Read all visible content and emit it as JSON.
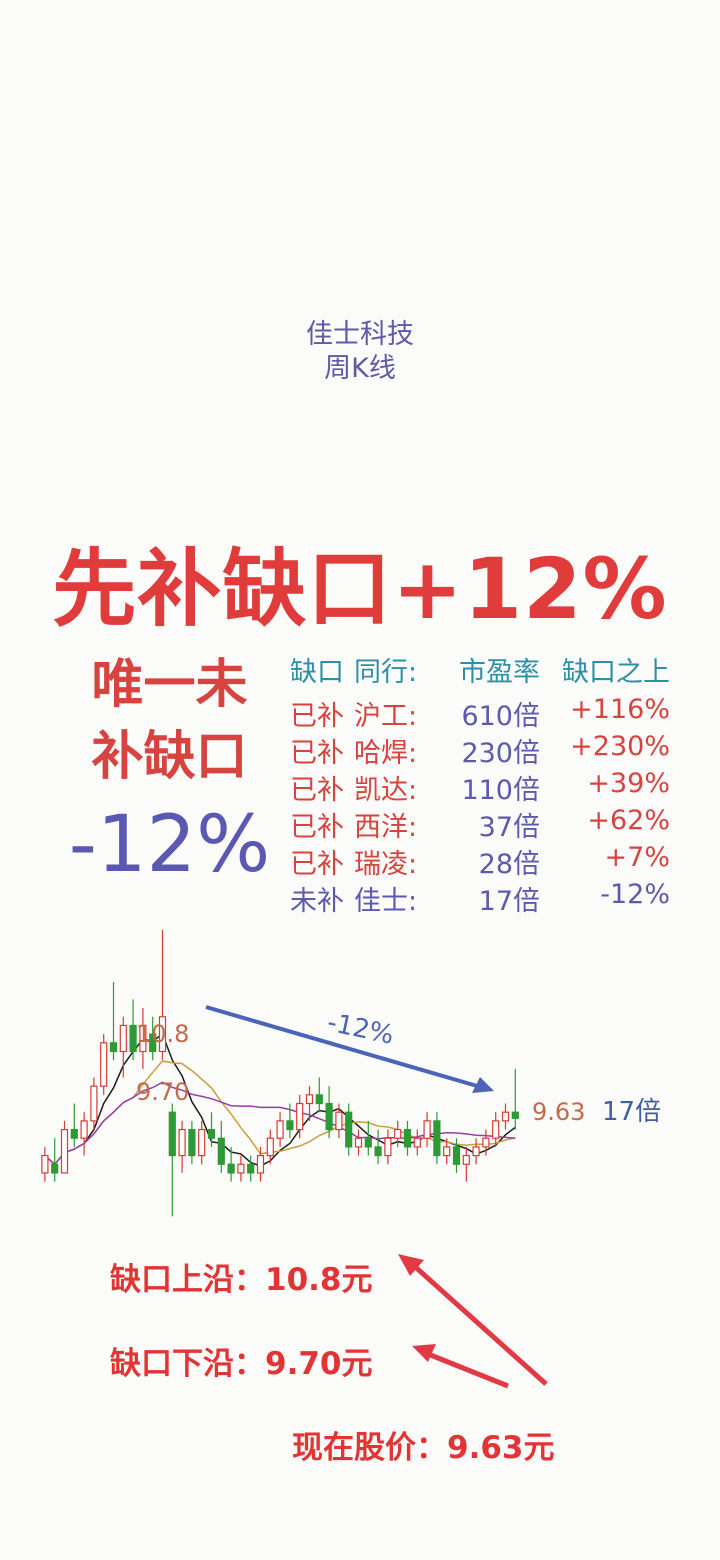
{
  "header": {
    "stock_name": "佳士科技",
    "chart_kind": "周K线"
  },
  "headline": "先补缺口+12%",
  "side": {
    "line1": "唯一未",
    "line2": "补缺口",
    "pct": "-12%"
  },
  "table": {
    "headers": [
      "缺口",
      "同行:",
      "市盈率",
      "缺口之上"
    ],
    "rows": [
      {
        "status": "已补",
        "name": "沪工:",
        "pe": "610倍",
        "above": "+116%"
      },
      {
        "status": "已补",
        "name": "哈焊:",
        "pe": "230倍",
        "above": "+230%"
      },
      {
        "status": "已补",
        "name": "凯达:",
        "pe": "110倍",
        "above": "+39%"
      },
      {
        "status": "已补",
        "name": "西洋:",
        "pe": "37倍",
        "above": "+62%"
      },
      {
        "status": "已补",
        "name": "瑞凌:",
        "pe": "28倍",
        "above": "+7%"
      },
      {
        "status": "未补",
        "name": "佳士:",
        "pe": "17倍",
        "above": "-12%"
      }
    ]
  },
  "chart_data": {
    "type": "candlestick",
    "annotations": {
      "gap_upper": "10.8",
      "gap_lower": "9.70",
      "current_price": "9.63",
      "current_pe": "17倍",
      "trend_label": "-12%"
    },
    "ylim": [
      8.4,
      11.8
    ],
    "candles": [
      {
        "o": 9.0,
        "h": 9.3,
        "l": 8.9,
        "c": 9.2
      },
      {
        "o": 9.1,
        "h": 9.4,
        "l": 8.9,
        "c": 9.0
      },
      {
        "o": 9.0,
        "h": 9.6,
        "l": 9.0,
        "c": 9.5
      },
      {
        "o": 9.5,
        "h": 9.8,
        "l": 9.3,
        "c": 9.4
      },
      {
        "o": 9.4,
        "h": 9.7,
        "l": 9.2,
        "c": 9.6
      },
      {
        "o": 9.6,
        "h": 10.1,
        "l": 9.5,
        "c": 10.0
      },
      {
        "o": 10.0,
        "h": 10.6,
        "l": 9.9,
        "c": 10.5
      },
      {
        "o": 10.5,
        "h": 11.2,
        "l": 10.3,
        "c": 10.4
      },
      {
        "o": 10.4,
        "h": 10.8,
        "l": 10.1,
        "c": 10.7
      },
      {
        "o": 10.7,
        "h": 11.0,
        "l": 10.3,
        "c": 10.4
      },
      {
        "o": 10.4,
        "h": 10.9,
        "l": 10.2,
        "c": 10.7
      },
      {
        "o": 10.6,
        "h": 10.8,
        "l": 10.3,
        "c": 10.4
      },
      {
        "o": 10.4,
        "h": 11.8,
        "l": 10.3,
        "c": 10.8
      },
      {
        "o": 9.7,
        "h": 9.8,
        "l": 8.5,
        "c": 9.2
      },
      {
        "o": 9.2,
        "h": 9.6,
        "l": 9.0,
        "c": 9.5
      },
      {
        "o": 9.5,
        "h": 9.6,
        "l": 9.1,
        "c": 9.2
      },
      {
        "o": 9.2,
        "h": 9.6,
        "l": 9.1,
        "c": 9.5
      },
      {
        "o": 9.5,
        "h": 9.7,
        "l": 9.3,
        "c": 9.4
      },
      {
        "o": 9.4,
        "h": 9.6,
        "l": 9.0,
        "c": 9.1
      },
      {
        "o": 9.1,
        "h": 9.3,
        "l": 8.9,
        "c": 9.0
      },
      {
        "o": 9.0,
        "h": 9.2,
        "l": 8.9,
        "c": 9.1
      },
      {
        "o": 9.1,
        "h": 9.2,
        "l": 8.9,
        "c": 9.0
      },
      {
        "o": 9.0,
        "h": 9.3,
        "l": 8.9,
        "c": 9.2
      },
      {
        "o": 9.2,
        "h": 9.5,
        "l": 9.1,
        "c": 9.4
      },
      {
        "o": 9.4,
        "h": 9.7,
        "l": 9.3,
        "c": 9.6
      },
      {
        "o": 9.6,
        "h": 9.8,
        "l": 9.4,
        "c": 9.5
      },
      {
        "o": 9.5,
        "h": 9.9,
        "l": 9.4,
        "c": 9.8
      },
      {
        "o": 9.8,
        "h": 10.0,
        "l": 9.6,
        "c": 9.9
      },
      {
        "o": 9.9,
        "h": 10.1,
        "l": 9.7,
        "c": 9.8
      },
      {
        "o": 9.8,
        "h": 10.0,
        "l": 9.4,
        "c": 9.5
      },
      {
        "o": 9.5,
        "h": 9.8,
        "l": 9.4,
        "c": 9.7
      },
      {
        "o": 9.7,
        "h": 9.8,
        "l": 9.2,
        "c": 9.3
      },
      {
        "o": 9.3,
        "h": 9.5,
        "l": 9.2,
        "c": 9.4
      },
      {
        "o": 9.4,
        "h": 9.6,
        "l": 9.2,
        "c": 9.3
      },
      {
        "o": 9.3,
        "h": 9.5,
        "l": 9.1,
        "c": 9.2
      },
      {
        "o": 9.2,
        "h": 9.5,
        "l": 9.1,
        "c": 9.4
      },
      {
        "o": 9.4,
        "h": 9.6,
        "l": 9.3,
        "c": 9.5
      },
      {
        "o": 9.5,
        "h": 9.6,
        "l": 9.2,
        "c": 9.3
      },
      {
        "o": 9.3,
        "h": 9.5,
        "l": 9.2,
        "c": 9.4
      },
      {
        "o": 9.4,
        "h": 9.7,
        "l": 9.3,
        "c": 9.6
      },
      {
        "o": 9.6,
        "h": 9.7,
        "l": 9.1,
        "c": 9.2
      },
      {
        "o": 9.2,
        "h": 9.4,
        "l": 9.1,
        "c": 9.3
      },
      {
        "o": 9.3,
        "h": 9.4,
        "l": 9.0,
        "c": 9.1
      },
      {
        "o": 9.1,
        "h": 9.3,
        "l": 8.9,
        "c": 9.2
      },
      {
        "o": 9.2,
        "h": 9.4,
        "l": 9.1,
        "c": 9.3
      },
      {
        "o": 9.3,
        "h": 9.5,
        "l": 9.2,
        "c": 9.4
      },
      {
        "o": 9.4,
        "h": 9.7,
        "l": 9.3,
        "c": 9.6
      },
      {
        "o": 9.6,
        "h": 9.8,
        "l": 9.5,
        "c": 9.7
      },
      {
        "o": 9.7,
        "h": 10.2,
        "l": 9.5,
        "c": 9.63
      }
    ]
  },
  "notes": {
    "upper": "缺口上沿：10.8元",
    "lower": "缺口下沿：9.70元",
    "current": "现在股价：9.63元"
  },
  "colors": {
    "up": "#d83a34",
    "down": "#2e9a36",
    "accent": "#5d5aa8",
    "arrow": "#e23a44"
  }
}
